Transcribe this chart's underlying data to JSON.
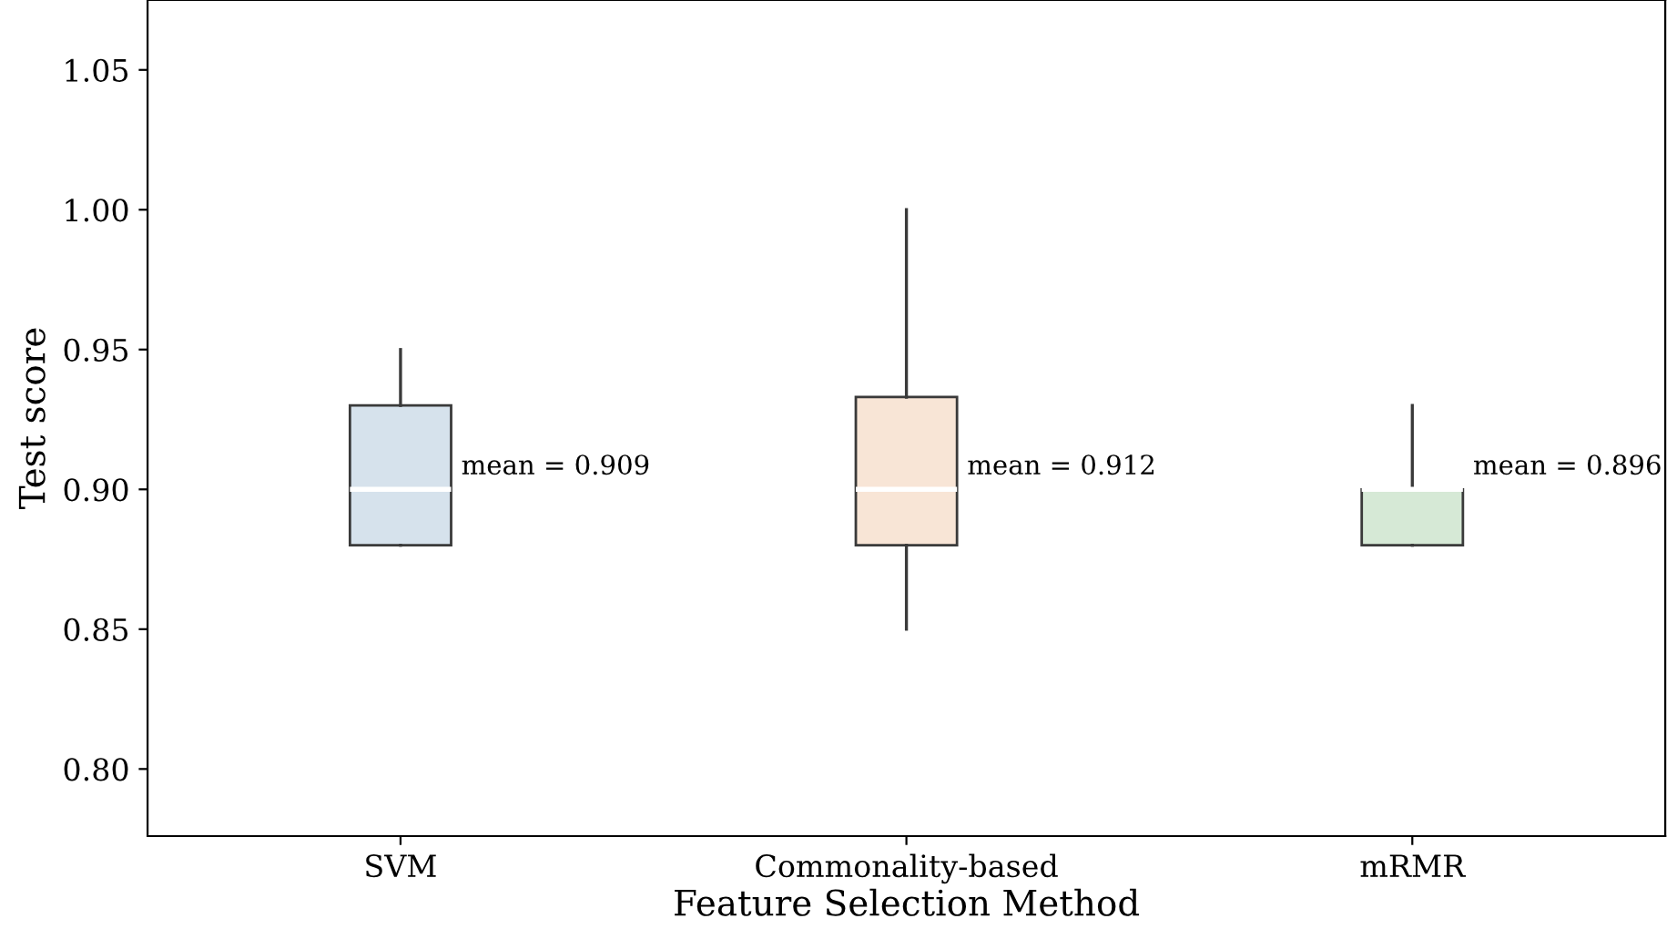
{
  "chart_data": {
    "type": "box",
    "xlabel": "Feature Selection Method",
    "ylabel": "Test score",
    "categories": [
      "SVM",
      "Commonality-based",
      "mRMR"
    ],
    "colors": [
      "#d6e2ec",
      "#f8e5d6",
      "#d6e9d6"
    ],
    "boxes": [
      {
        "low": 0.88,
        "q1": 0.88,
        "median": 0.9,
        "q3": 0.93,
        "high": 0.95
      },
      {
        "low": 0.85,
        "q1": 0.88,
        "median": 0.9,
        "q3": 0.933,
        "high": 1.0
      },
      {
        "low": 0.88,
        "q1": 0.88,
        "median": 0.9,
        "q3": 0.9,
        "high": 0.93
      }
    ],
    "annotations": [
      "mean = 0.909",
      "mean = 0.912",
      "mean = 0.896"
    ],
    "ylim": [
      0.776,
      1.075
    ],
    "yticks": [
      {
        "value": 0.8,
        "label": "0.80"
      },
      {
        "value": 0.85,
        "label": "0.85"
      },
      {
        "value": 0.9,
        "label": "0.90"
      },
      {
        "value": 0.95,
        "label": "0.95"
      },
      {
        "value": 1.0,
        "label": "1.00"
      },
      {
        "value": 1.05,
        "label": "1.05"
      }
    ],
    "grid": false,
    "legend": false
  }
}
